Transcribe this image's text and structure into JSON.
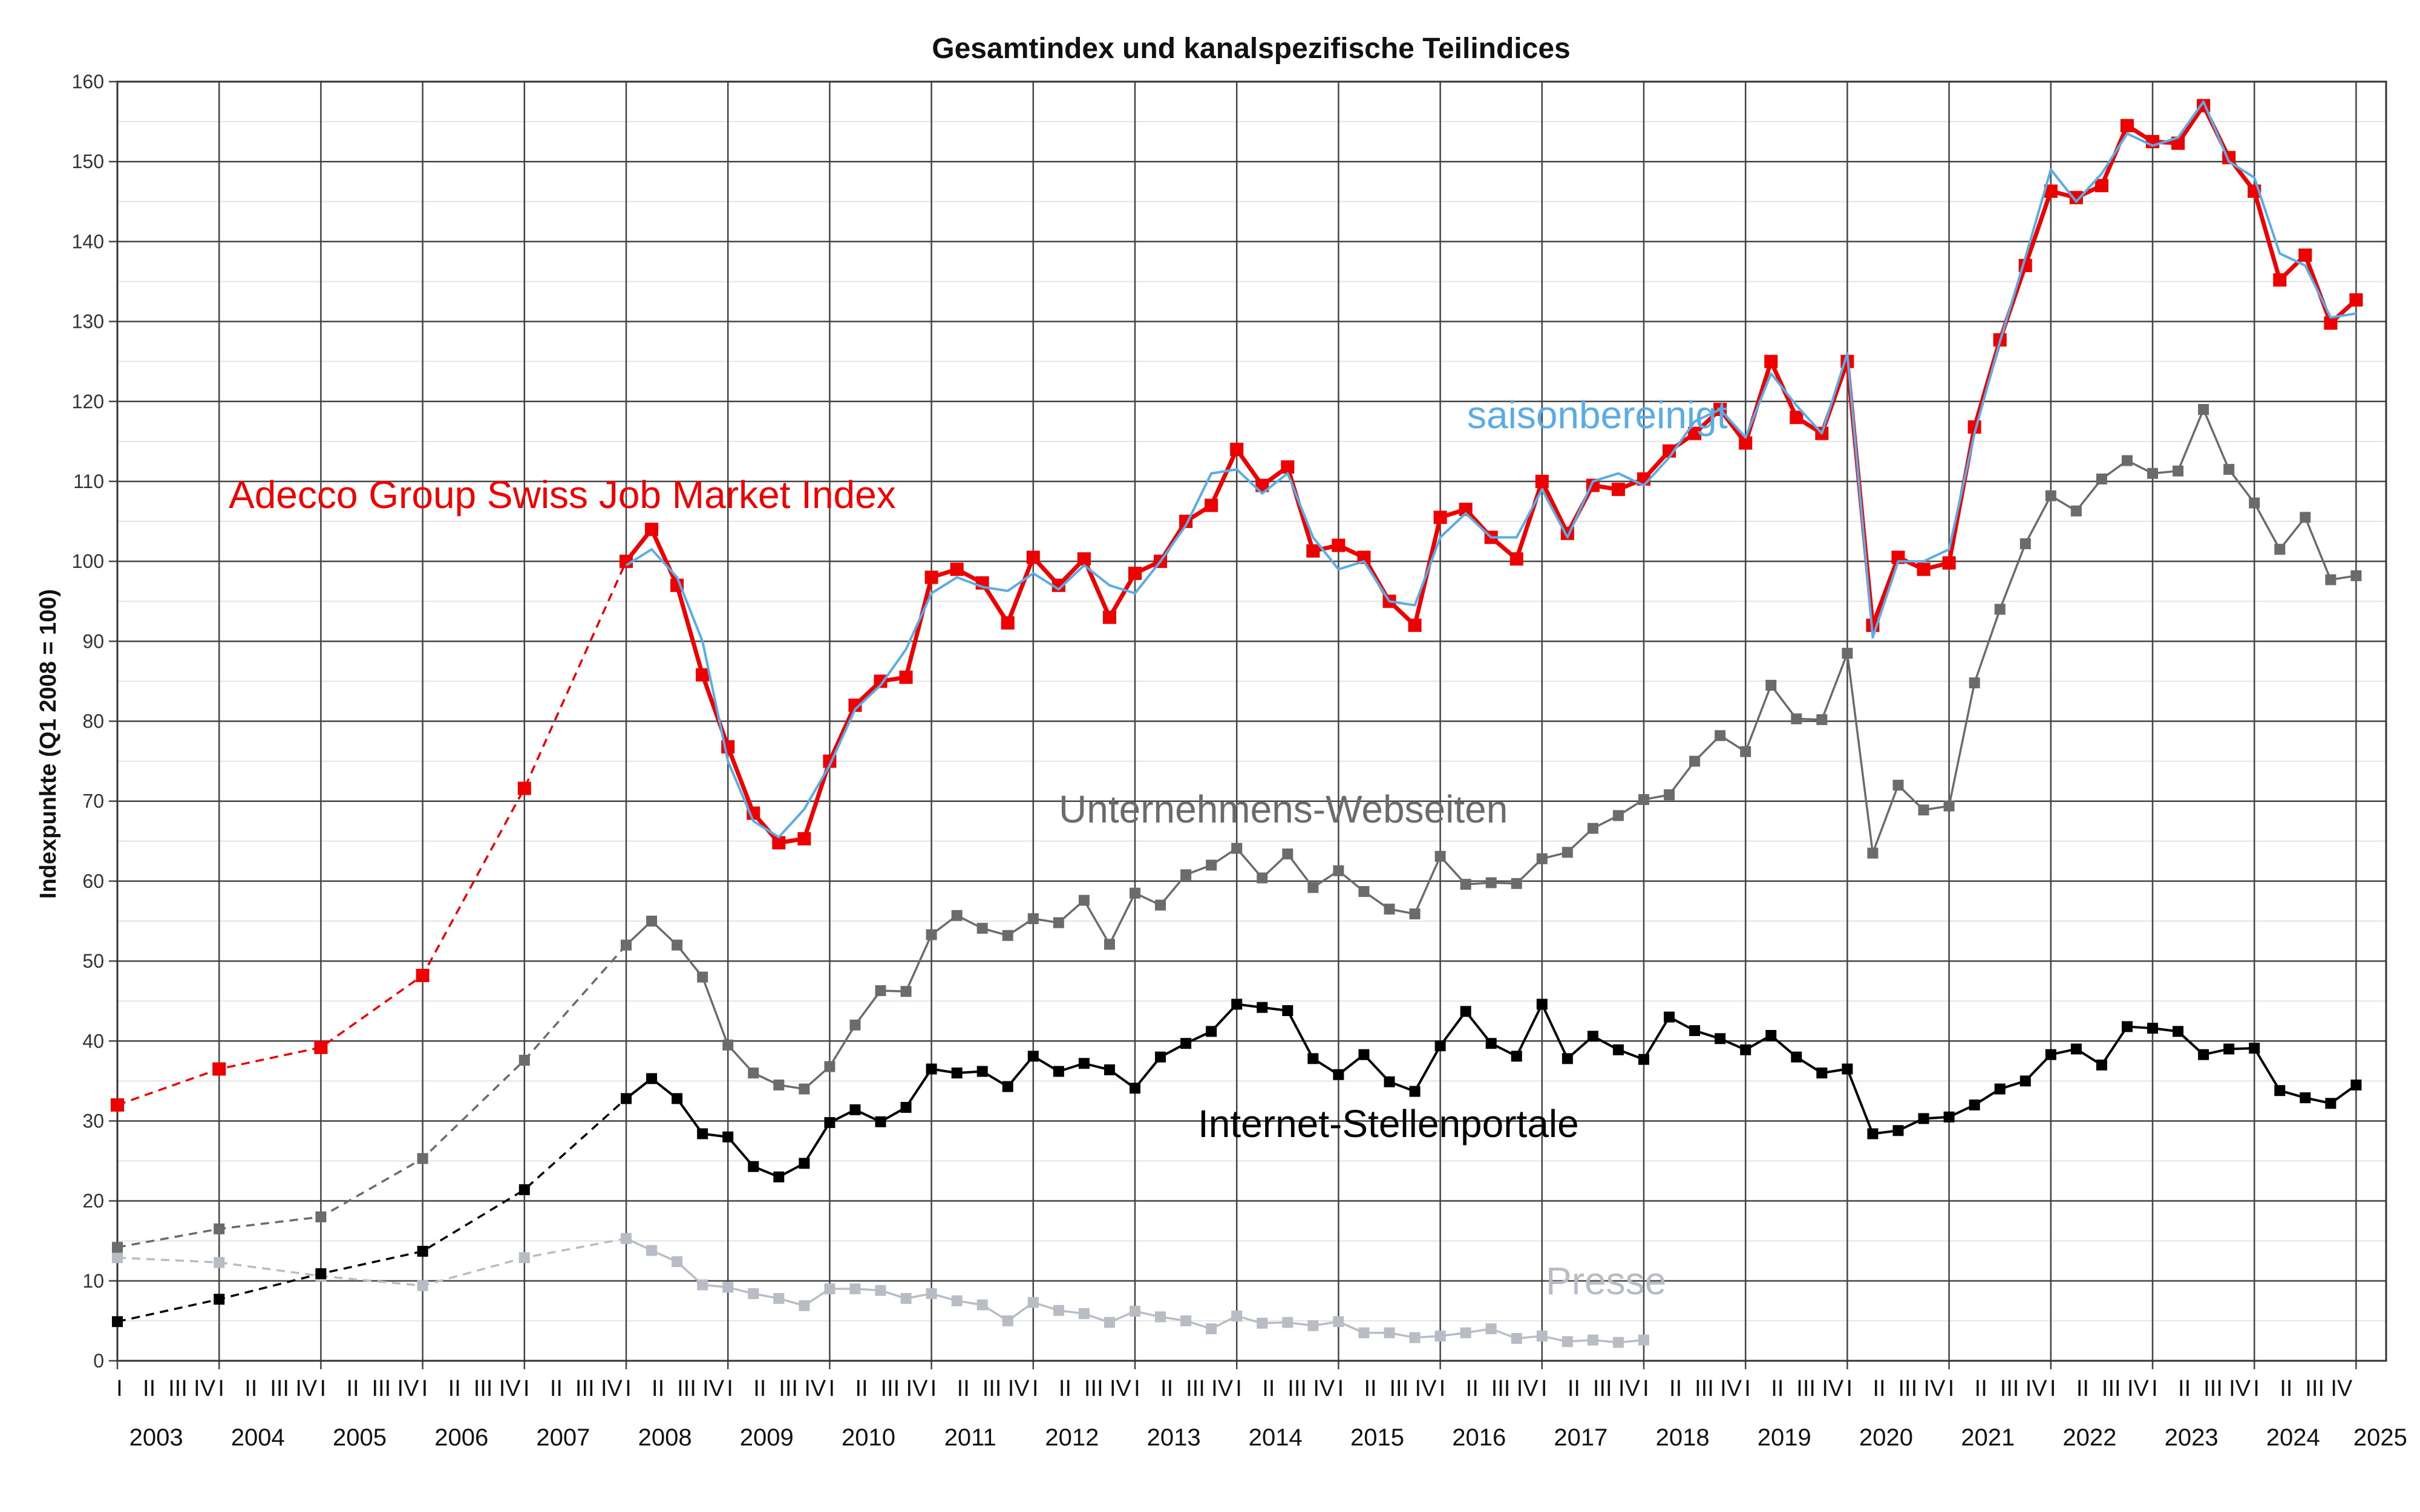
{
  "chart_data": {
    "type": "line",
    "title": "Gesamtindex und kanalspezifische Teilindices",
    "ylabel": "Indexpunkte (Q1 2008 = 100)",
    "xlabel": "",
    "ylim": [
      0,
      160
    ],
    "y_ticks": [
      0,
      10,
      20,
      30,
      40,
      50,
      60,
      70,
      80,
      90,
      100,
      110,
      120,
      130,
      140,
      150,
      160
    ],
    "x_years": [
      "2003",
      "2004",
      "2005",
      "2006",
      "2007",
      "2008",
      "2009",
      "2010",
      "2011",
      "2012",
      "2013",
      "2014",
      "2015",
      "2016",
      "2017",
      "2018",
      "2019",
      "2020",
      "2021",
      "2022",
      "2023",
      "2024",
      "2025"
    ],
    "quarter_labels": [
      "I",
      "II",
      "III",
      "IV"
    ],
    "grid": true,
    "annual_period": "2003-2007 annual values, dashed",
    "series": [
      {
        "name": "Adecco Group Swiss Job Market Index",
        "color": "#ee0000",
        "annual": [
          32.0,
          36.5,
          39.2,
          48.2,
          71.6
        ],
        "quarterly": [
          100.0,
          104.0,
          97.0,
          85.8,
          76.8,
          68.5,
          64.8,
          65.3,
          75.0,
          82.0,
          85.0,
          85.5,
          98.0,
          99.0,
          97.3,
          92.3,
          100.5,
          97.0,
          100.3,
          93.0,
          98.5,
          100.0,
          105.0,
          107.0,
          114.0,
          109.5,
          111.8,
          101.3,
          102.0,
          100.5,
          95.0,
          92.0,
          105.5,
          106.5,
          103.0,
          100.3,
          110.0,
          103.5,
          109.5,
          109.0,
          110.3,
          113.8,
          116.0,
          119.0,
          114.8,
          125.0,
          118.0,
          116.0,
          125.0,
          92.0,
          100.5,
          99.0,
          99.8,
          116.8,
          127.7,
          137.0,
          146.3,
          145.5,
          147.0,
          154.5,
          152.5,
          152.3,
          157.0,
          150.5,
          146.3,
          135.2,
          138.3,
          129.8,
          132.7
        ]
      },
      {
        "name": "saisonbereinigt",
        "color": "#5aace6",
        "annual": [],
        "quarterly": [
          99.5,
          101.5,
          98.0,
          90.0,
          75.0,
          67.5,
          65.5,
          69.0,
          74.5,
          81.5,
          84.5,
          89.0,
          96.0,
          98.0,
          96.8,
          96.3,
          98.5,
          96.5,
          99.5,
          97.0,
          96.0,
          100.0,
          104.5,
          111.0,
          111.5,
          108.5,
          111.0,
          103.0,
          99.0,
          100.0,
          95.0,
          94.5,
          103.0,
          106.0,
          103.0,
          103.0,
          109.0,
          103.0,
          110.0,
          111.0,
          109.5,
          113.0,
          117.5,
          119.0,
          115.5,
          123.5,
          119.5,
          116.0,
          126.0,
          90.5,
          100.0,
          100.0,
          101.5,
          116.0,
          127.5,
          138.0,
          149.0,
          145.0,
          148.5,
          153.5,
          152.0,
          153.0,
          157.5,
          150.0,
          148.0,
          138.5,
          137.0,
          130.5,
          131.0
        ]
      },
      {
        "name": "Unternehmens-Webseiten",
        "color": "#6b6b6b",
        "annual": [
          14.2,
          16.5,
          18.0,
          25.3,
          37.6
        ],
        "quarterly": [
          52.0,
          55.0,
          52.0,
          48.0,
          39.5,
          36.0,
          34.5,
          34.0,
          36.8,
          42.0,
          46.3,
          46.2,
          53.3,
          55.7,
          54.1,
          53.2,
          55.3,
          54.8,
          57.6,
          52.1,
          58.5,
          57.0,
          60.8,
          62.0,
          64.1,
          60.4,
          63.4,
          59.2,
          61.3,
          58.7,
          56.5,
          55.9,
          63.1,
          59.6,
          59.8,
          59.7,
          62.8,
          63.6,
          66.6,
          68.2,
          70.2,
          70.8,
          75.0,
          78.2,
          76.2,
          84.5,
          80.3,
          80.2,
          88.5,
          63.5,
          72.0,
          68.9,
          69.4,
          84.8,
          94.0,
          102.2,
          108.2,
          106.3,
          110.3,
          112.6,
          111.0,
          111.3,
          119.0,
          111.5,
          107.3,
          101.5,
          105.5,
          97.7,
          98.2
        ]
      },
      {
        "name": "Internet-Stellenportale",
        "color": "#000000",
        "annual": [
          4.9,
          7.7,
          10.9,
          13.7,
          21.4
        ],
        "quarterly": [
          32.8,
          35.3,
          32.8,
          28.4,
          28.0,
          24.3,
          23.0,
          24.7,
          29.8,
          31.4,
          29.9,
          31.7,
          36.5,
          36.0,
          36.2,
          34.3,
          38.1,
          36.2,
          37.2,
          36.4,
          34.1,
          38.0,
          39.7,
          41.2,
          44.6,
          44.2,
          43.8,
          37.8,
          35.8,
          38.3,
          34.9,
          33.7,
          39.4,
          43.7,
          39.7,
          38.1,
          44.6,
          37.8,
          40.6,
          38.9,
          37.7,
          43.0,
          41.3,
          40.3,
          38.9,
          40.7,
          38.0,
          36.0,
          36.5,
          28.4,
          28.8,
          30.3,
          30.5,
          32.0,
          34.0,
          35.0,
          38.3,
          39.0,
          37.0,
          41.8,
          41.6,
          41.2,
          38.3,
          39.0,
          39.1,
          33.8,
          32.9,
          32.2,
          34.5
        ]
      },
      {
        "name": "Presse",
        "color": "#b8bcc4",
        "annual": [
          12.9,
          12.3,
          10.6,
          9.4,
          12.9
        ],
        "quarterly": [
          15.3,
          13.8,
          12.4,
          9.5,
          9.2,
          8.4,
          7.8,
          6.9,
          9.0,
          9.0,
          8.8,
          7.8,
          8.4,
          7.5,
          7.0,
          5.0,
          7.3,
          6.3,
          5.9,
          4.8,
          6.2,
          5.5,
          5.0,
          4.0,
          5.6,
          4.7,
          4.8,
          4.4,
          4.9,
          3.5,
          3.5,
          2.9,
          3.1,
          3.5,
          4.0,
          2.8,
          3.1,
          2.4,
          2.6,
          2.3,
          2.6
        ]
      }
    ],
    "annotations": [
      {
        "text": "Adecco Group Swiss Job Market Index",
        "color": "#ee0000"
      },
      {
        "text": "saisonbereinigt",
        "color": "#5aace6"
      },
      {
        "text": "Unternehmens-Webseiten",
        "color": "#6b6b6b"
      },
      {
        "text": "Internet-Stellenportale",
        "color": "#000000"
      },
      {
        "text": "Presse",
        "color": "#b8bcc4"
      }
    ]
  }
}
